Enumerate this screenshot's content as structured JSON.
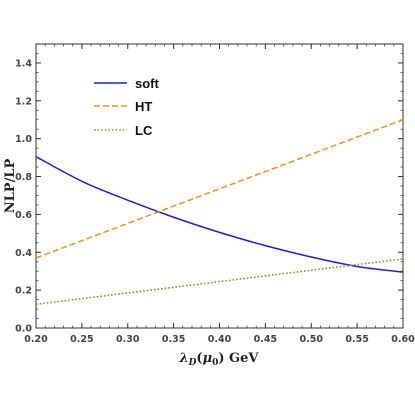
{
  "chart_data": {
    "type": "line",
    "xlabel": "λ_D(μ_0) GeV",
    "ylabel": "NLP/LP",
    "xlim": [
      0.2,
      0.6
    ],
    "ylim": [
      0.0,
      1.5
    ],
    "xticks": [
      "0.20",
      "0.25",
      "0.30",
      "0.35",
      "0.40",
      "0.45",
      "0.50",
      "0.55",
      "0.60"
    ],
    "yticks": [
      "0.0",
      "0.2",
      "0.4",
      "0.6",
      "0.8",
      "1.0",
      "1.2",
      "1.4"
    ],
    "legend_position": "top-left",
    "series": [
      {
        "name": "soft",
        "color": "#1f1fd6",
        "style": "solid",
        "x": [
          0.2,
          0.25,
          0.3,
          0.35,
          0.4,
          0.45,
          0.5,
          0.55,
          0.6
        ],
        "y": [
          0.905,
          0.775,
          0.675,
          0.585,
          0.505,
          0.435,
          0.375,
          0.325,
          0.295
        ]
      },
      {
        "name": "HT",
        "color": "#e8961f",
        "style": "dashed",
        "x": [
          0.2,
          0.6
        ],
        "y": [
          0.37,
          1.1
        ]
      },
      {
        "name": "LC",
        "color": "#7d9a2a",
        "style": "dotted",
        "x": [
          0.2,
          0.6
        ],
        "y": [
          0.125,
          0.365
        ]
      }
    ]
  }
}
